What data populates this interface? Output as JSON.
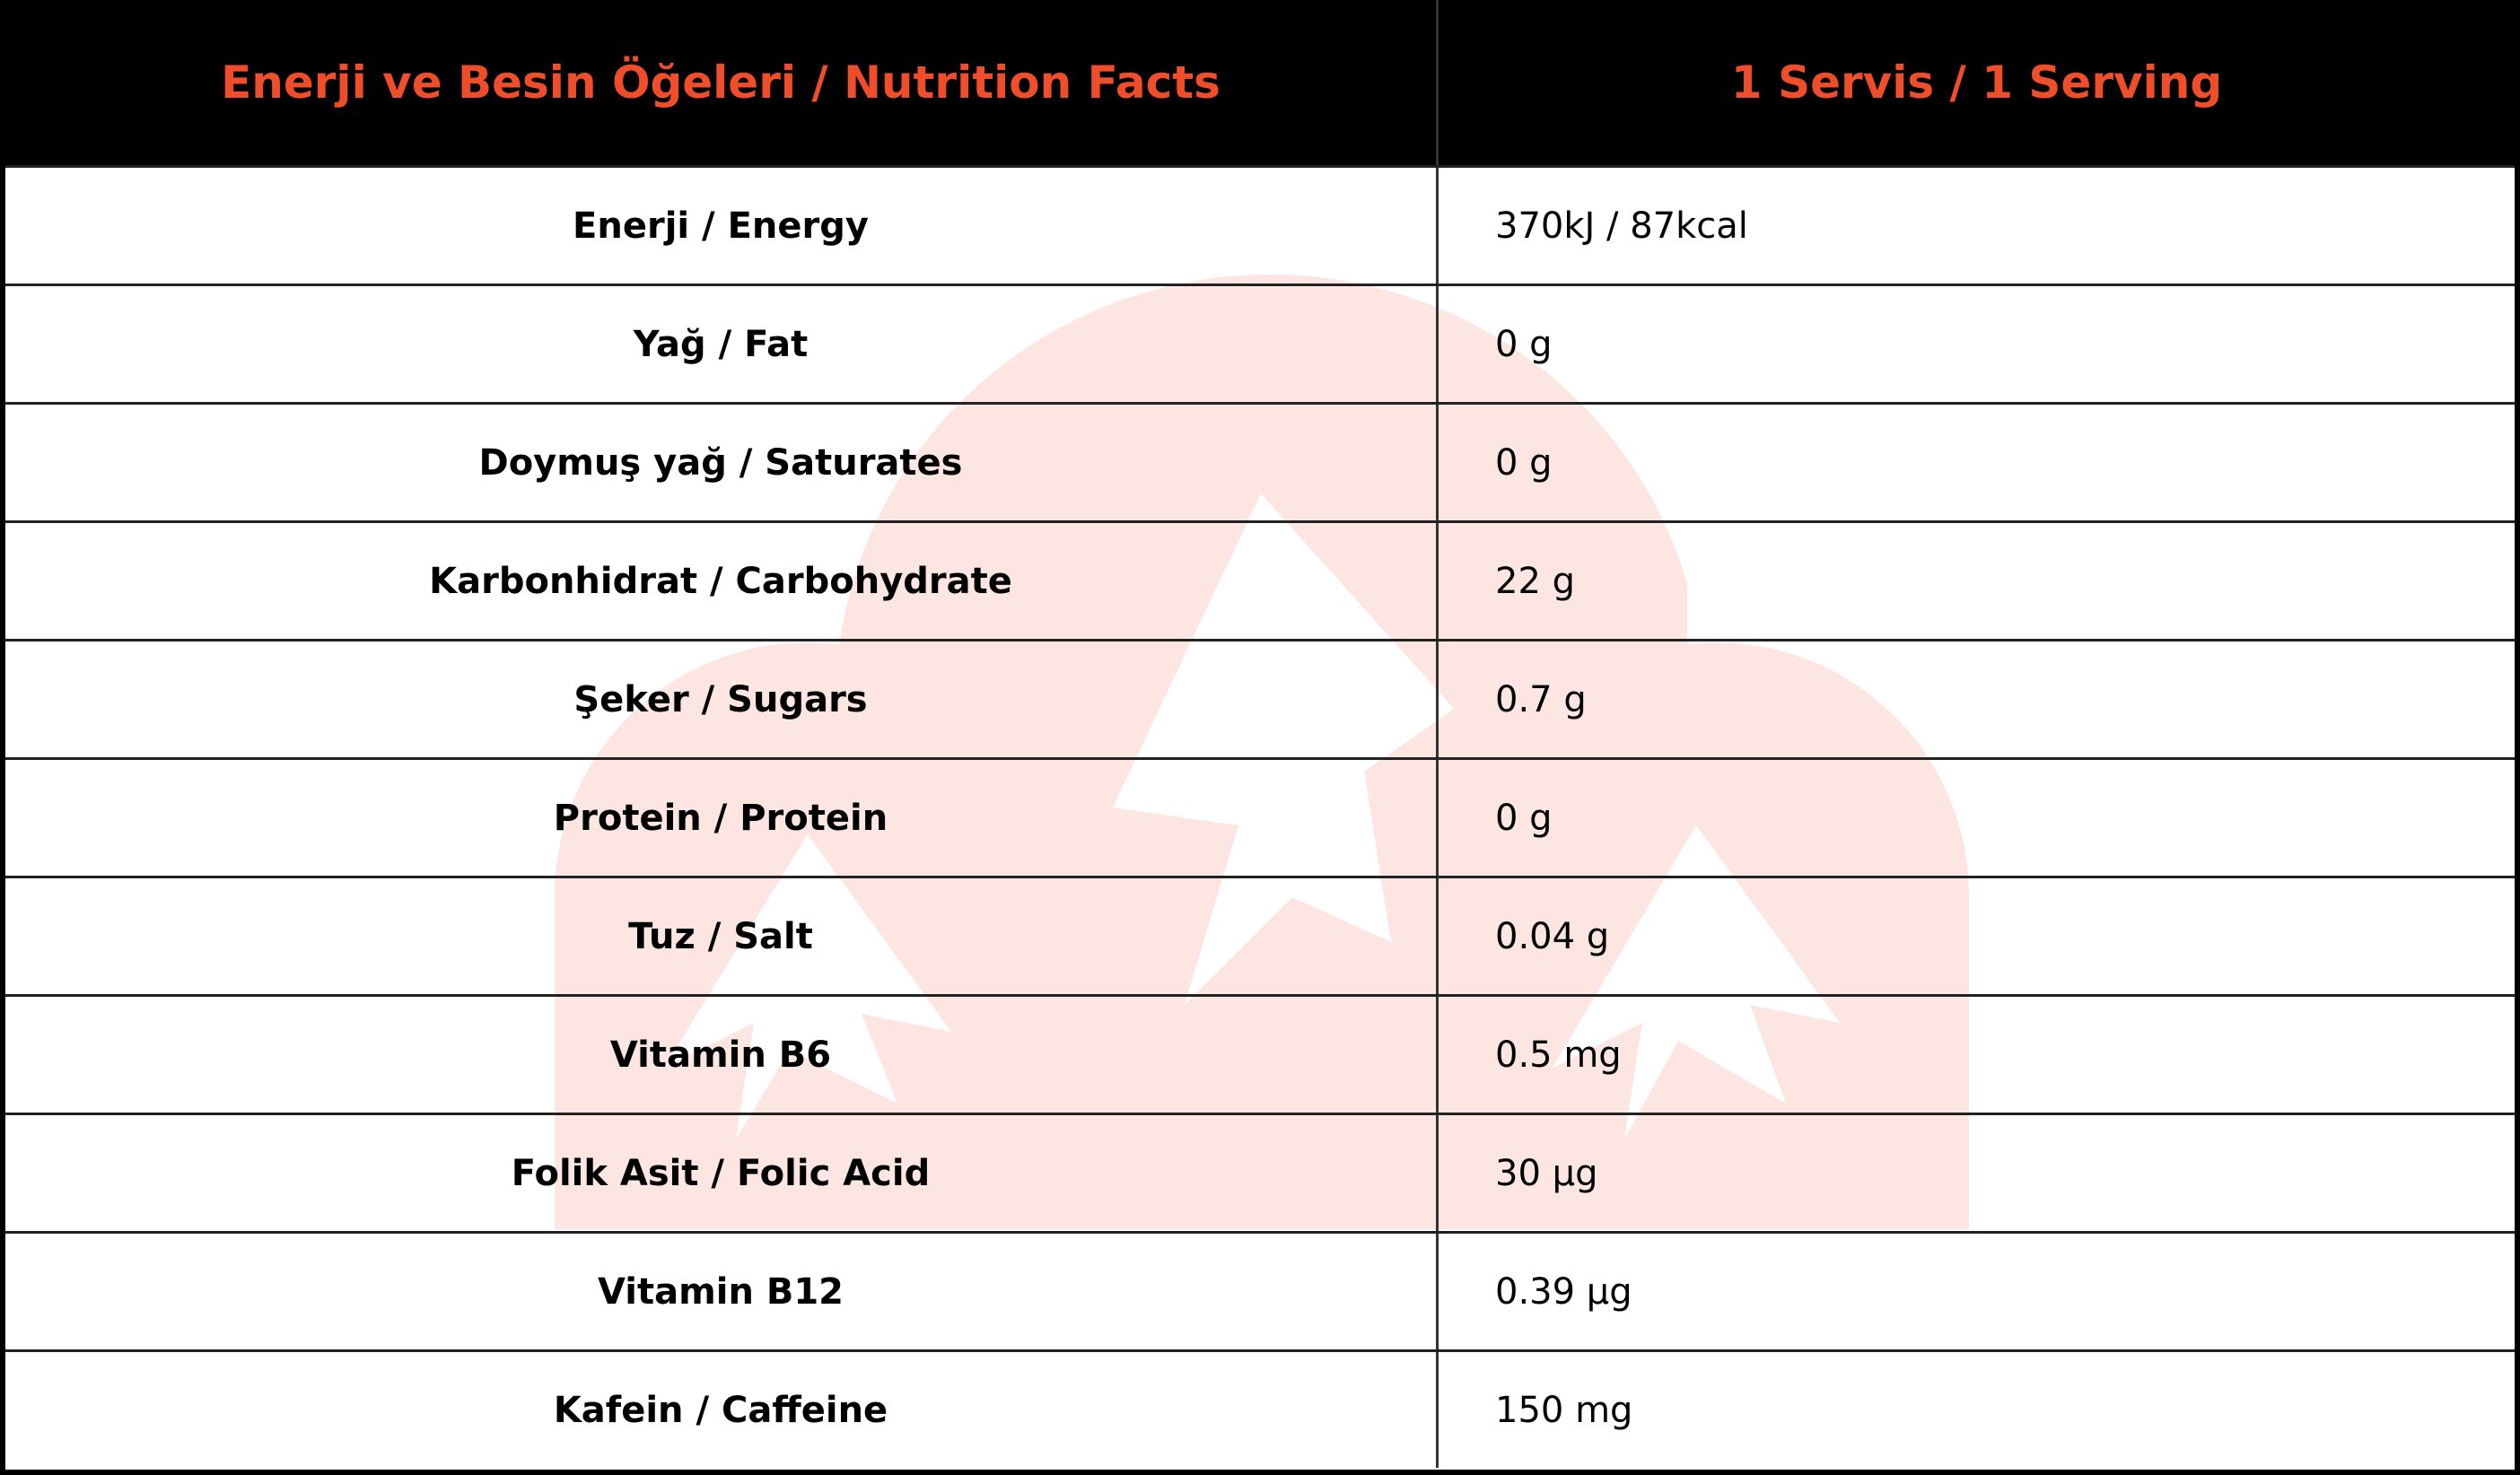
{
  "header": {
    "columns": [
      "Enerji ve Besin Öğeleri / Nutrition Facts",
      "1 Servis / 1 Serving"
    ]
  },
  "table": {
    "rows": [
      [
        "Enerji / Energy",
        "370kJ / 87kcal"
      ],
      [
        "Yağ / Fat",
        "0 g"
      ],
      [
        "Doymuş yağ / Saturates",
        "0 g"
      ],
      [
        "Karbonhidrat / Carbohydrate",
        "22 g"
      ],
      [
        "Şeker / Sugars",
        "0.7 g"
      ],
      [
        "Protein / Protein",
        "0 g"
      ],
      [
        "Tuz / Salt",
        "0.04 g"
      ],
      [
        "Vitamin B6",
        "0.5 mg"
      ],
      [
        "Folik Asit / Folic Acid",
        "30 µg"
      ],
      [
        "Vitamin B12",
        "0.39 µg"
      ],
      [
        "Kafein / Caffeine",
        "150 mg"
      ]
    ]
  }
}
